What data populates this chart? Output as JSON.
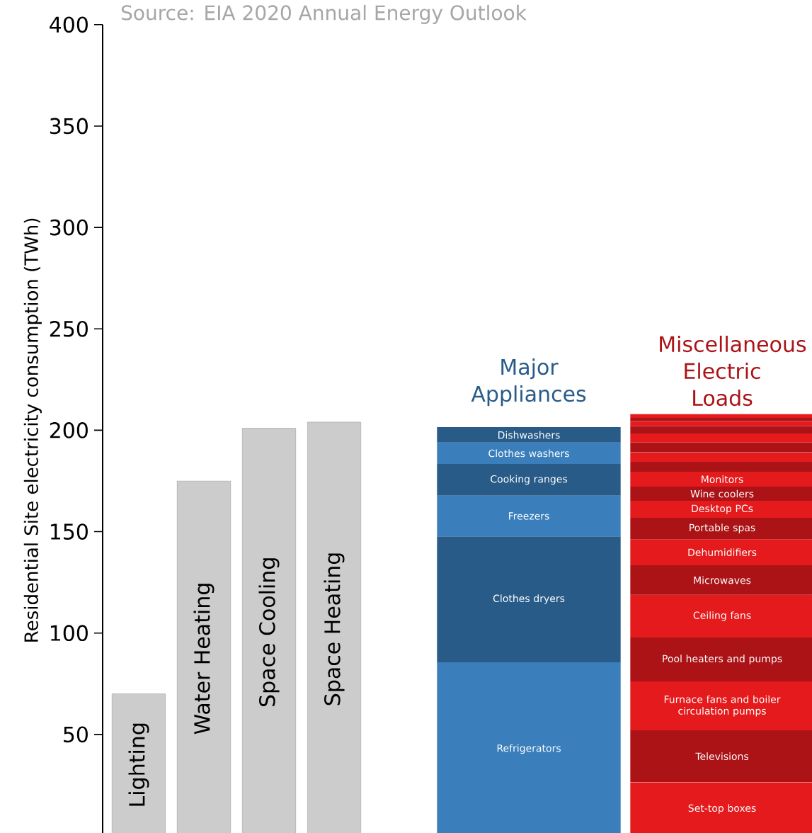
{
  "chart_data": [
    {
      "type": "bar",
      "stacked": true,
      "ylabel": "Residential Site electricity consumption (TWh)",
      "annotations": [
        "Source: EIA 2020 Annual Energy Outlook"
      ],
      "categories": [
        "Lighting",
        "Water Heating",
        "Space Cooling",
        "Space Heating"
      ],
      "ylim": [
        0,
        400
      ],
      "yticks": [
        50,
        100,
        150,
        200,
        250,
        300,
        350,
        400
      ],
      "series": [
        {
          "color": "#cccccc",
          "values": [
            70,
            175,
            201,
            204
          ]
        }
      ]
    },
    {
      "type": "bar",
      "stacked": true,
      "tick_labels": false,
      "categories": [
        "Major Appliances",
        "Miscellaneous Electric Loads"
      ],
      "ylim": [
        0,
        400
      ],
      "series": [
        {
          "name": "Refrigerators",
          "color": "#3a7ebb",
          "values": [
            85.6,
            null
          ]
        },
        {
          "name": "Clothes dryers",
          "color": "#285b88",
          "values": [
            62.1,
            null
          ]
        },
        {
          "name": "Freezers",
          "color": "#3a7ebb",
          "values": [
            20.0,
            null
          ]
        },
        {
          "name": "Cooking ranges",
          "color": "#285b88",
          "values": [
            15.7,
            null
          ]
        },
        {
          "name": "Clothes washers",
          "color": "#3a7ebb",
          "values": [
            10.5,
            null
          ]
        },
        {
          "name": "Dishwashers",
          "color": "#285b88",
          "values": [
            7.6,
            null
          ]
        },
        {
          "name": "Set-top boxes",
          "color": "#e41a1c",
          "values": [
            null,
            26.5
          ]
        },
        {
          "name": "Televisions",
          "color": "#ab1317",
          "values": [
            null,
            25.5
          ]
        },
        {
          "name": "Furnace fans and boiler circulation pumps",
          "color": "#e41a1c",
          "values": [
            null,
            24.1
          ]
        },
        {
          "name": "Pool heaters and pumps",
          "color": "#ab1317",
          "values": [
            null,
            21.7
          ]
        },
        {
          "name": "Ceiling fans",
          "color": "#e41a1c",
          "values": [
            null,
            21.0
          ]
        },
        {
          "name": "Microwaves",
          "color": "#ab1317",
          "values": [
            null,
            14.6
          ]
        },
        {
          "name": "Dehumidifiers",
          "color": "#e41a1c",
          "values": [
            null,
            12.9
          ]
        },
        {
          "name": "Portable spas",
          "color": "#ab1317",
          "values": [
            null,
            10.5
          ]
        },
        {
          "name": "Desktop PCs",
          "color": "#e41a1c",
          "values": [
            null,
            8.4
          ]
        },
        {
          "name": "Wine coolers",
          "color": "#ab1317",
          "values": [
            null,
            7.0
          ]
        },
        {
          "name": "Monitors",
          "color": "#e41a1c",
          "values": [
            null,
            7.3
          ]
        },
        {
          "color": "#ab1317",
          "values": [
            null,
            4.9
          ]
        },
        {
          "color": "#e41a1c",
          "values": [
            null,
            4.7
          ]
        },
        {
          "color": "#ab1317",
          "values": [
            null,
            4.8
          ]
        },
        {
          "color": "#e41a1c",
          "values": [
            null,
            4.5
          ]
        },
        {
          "color": "#ab1317",
          "values": [
            null,
            3.7
          ]
        },
        {
          "color": "#e41a1c",
          "values": [
            null,
            2.4
          ]
        },
        {
          "color": "#ab1317",
          "values": [
            null,
            1.6
          ]
        },
        {
          "color": "#e41a1c",
          "values": [
            null,
            1.9
          ]
        }
      ]
    }
  ]
}
